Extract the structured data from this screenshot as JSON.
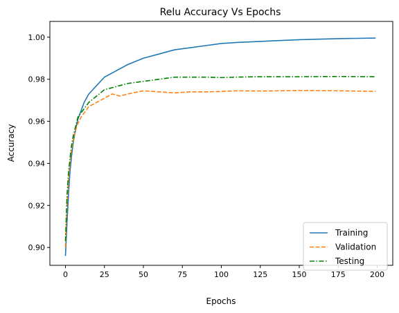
{
  "chart_data": {
    "type": "line",
    "title": "Relu Accuracy Vs Epochs",
    "xlabel": "Epochs",
    "ylabel": "Accuracy",
    "xlim": [
      -10,
      210
    ],
    "ylim": [
      0.8915,
      1.0075
    ],
    "xticks": [
      0,
      25,
      50,
      75,
      100,
      125,
      150,
      175,
      200
    ],
    "yticks": [
      0.9,
      0.92,
      0.94,
      0.96,
      0.98,
      1.0
    ],
    "ytick_labels": [
      "0.90",
      "0.92",
      "0.94",
      "0.96",
      "0.98",
      "1.00"
    ],
    "grid": false,
    "legend_position": "lower-right",
    "x": [
      0,
      1,
      2,
      3,
      4,
      5,
      6,
      7,
      8,
      10,
      12,
      15,
      20,
      25,
      30,
      35,
      40,
      50,
      60,
      70,
      80,
      90,
      100,
      110,
      125,
      150,
      175,
      199
    ],
    "series": [
      {
        "name": "Training",
        "color": "#1f77b4",
        "dash": "solid",
        "values": [
          0.896,
          0.912,
          0.926,
          0.937,
          0.944,
          0.95,
          0.954,
          0.958,
          0.961,
          0.965,
          0.969,
          0.973,
          0.977,
          0.981,
          0.983,
          0.985,
          0.987,
          0.99,
          0.992,
          0.994,
          0.995,
          0.996,
          0.997,
          0.9975,
          0.998,
          0.9988,
          0.9993,
          0.9996
        ]
      },
      {
        "name": "Validation",
        "color": "#ff7f0e",
        "dash": "dashed",
        "values": [
          0.9,
          0.921,
          0.933,
          0.941,
          0.947,
          0.951,
          0.954,
          0.957,
          0.959,
          0.962,
          0.964,
          0.967,
          0.969,
          0.971,
          0.973,
          0.972,
          0.973,
          0.9745,
          0.974,
          0.9735,
          0.974,
          0.974,
          0.9742,
          0.9745,
          0.9744,
          0.9746,
          0.9745,
          0.9742
        ]
      },
      {
        "name": "Testing",
        "color": "#008000",
        "dash": "dashdot",
        "values": [
          0.903,
          0.925,
          0.936,
          0.943,
          0.949,
          0.953,
          0.956,
          0.959,
          0.962,
          0.964,
          0.966,
          0.969,
          0.972,
          0.975,
          0.976,
          0.977,
          0.978,
          0.979,
          0.98,
          0.981,
          0.981,
          0.981,
          0.9808,
          0.981,
          0.9812,
          0.9812,
          0.9813,
          0.9812
        ]
      }
    ]
  }
}
